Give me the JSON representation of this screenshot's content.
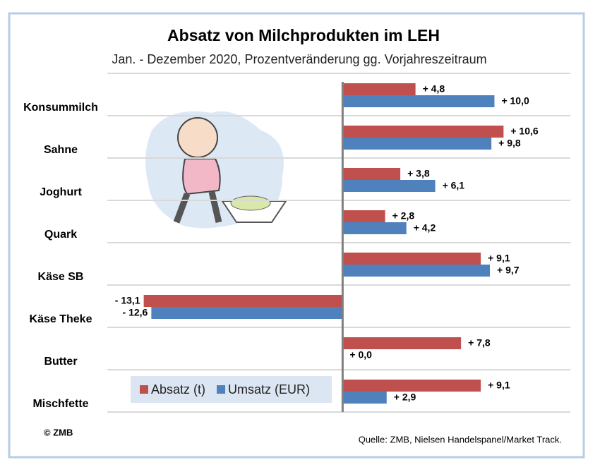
{
  "chart_data": {
    "type": "hbar",
    "title": "Absatz von Milchprodukten im LEH",
    "subtitle": "Jan. - Dezember 2020, Prozentveränderung gg. Vorjahreszeitraum",
    "categories": [
      "Konsummilch",
      "Sahne",
      "Joghurt",
      "Quark",
      "Käse SB",
      "Käse Theke",
      "Butter",
      "Mischfette"
    ],
    "series": [
      {
        "name": "Absatz (t)",
        "color": "#c0504d",
        "values": [
          4.8,
          10.6,
          3.8,
          2.8,
          9.1,
          -13.1,
          7.8,
          9.1
        ],
        "value_labels": [
          "+ 4,8",
          "+ 10,6",
          "+ 3,8",
          "+ 2,8",
          "+ 9,1",
          "- 13,1",
          "+ 7,8",
          "+ 9,1"
        ]
      },
      {
        "name": "Umsatz (EUR)",
        "color": "#4f81bd",
        "values": [
          10.0,
          9.8,
          6.1,
          4.2,
          9.7,
          -12.6,
          0.0,
          2.9
        ],
        "value_labels": [
          "+ 10,0",
          "+ 9,8",
          "+ 6,1",
          "+ 4,2",
          "+ 9,7",
          "- 12,6",
          "+ 0,0",
          "+ 2,9"
        ]
      }
    ],
    "xlim": [
      -15.5,
      15
    ],
    "copyright": "© ZMB",
    "source": "Quelle: ZMB, Nielsen Handelspanel/Market Track."
  }
}
